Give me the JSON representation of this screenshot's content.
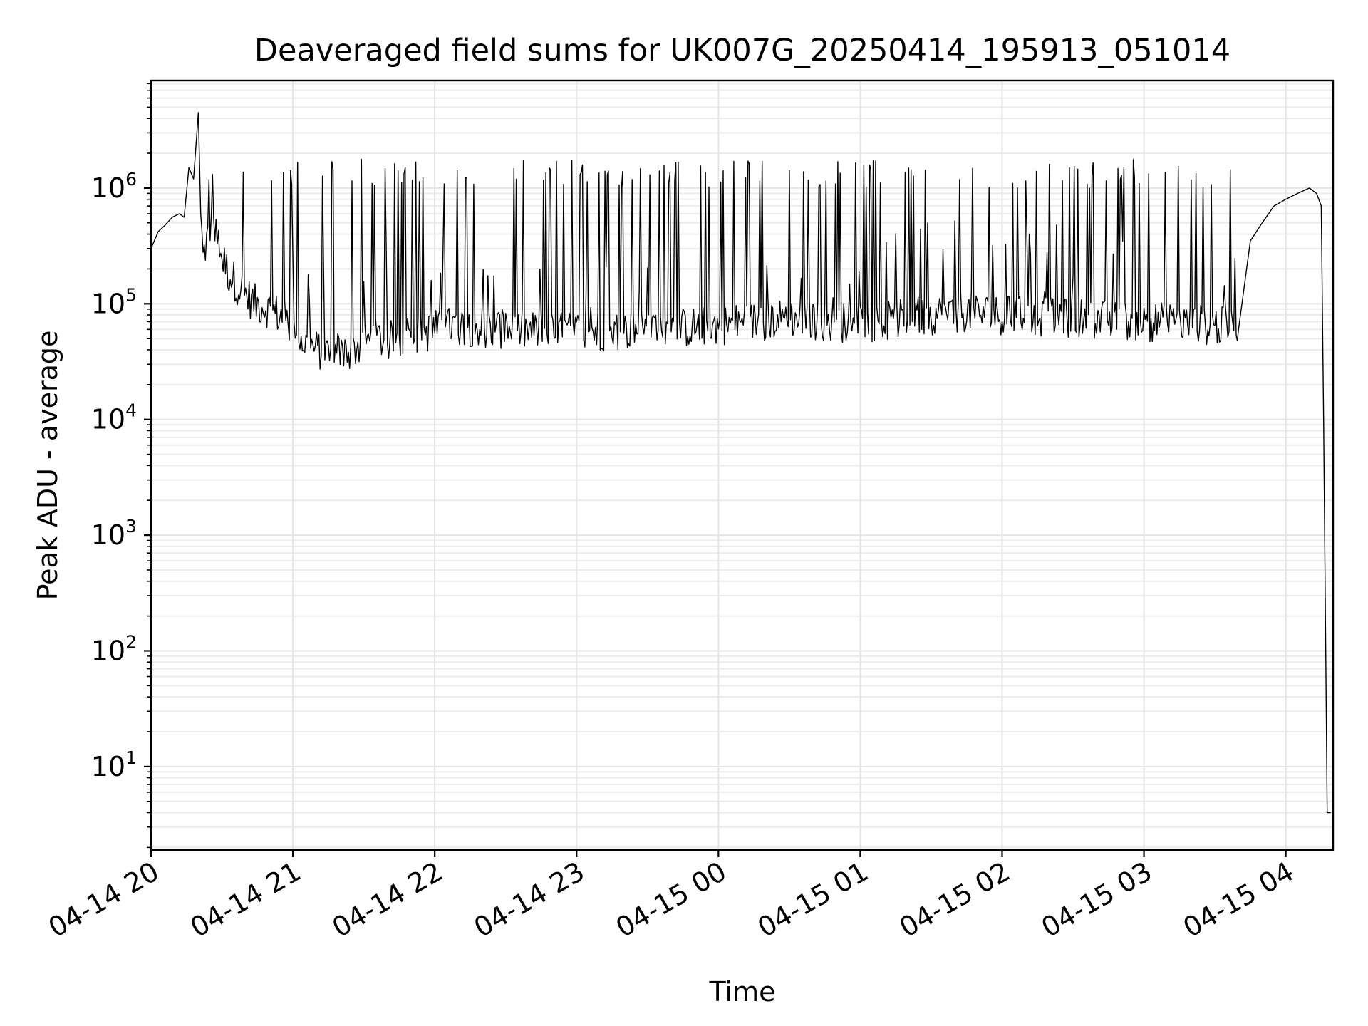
{
  "chart_data": {
    "type": "line",
    "title": "Deaveraged field sums for UK007G_20250414_195913_051014",
    "xlabel": "Time",
    "ylabel": "Peak ADU - average",
    "xlim": [
      "2025-04-14 20:00",
      "2025-04-15 04:20"
    ],
    "ylim": [
      1.9,
      8500000
    ],
    "yscale": "log",
    "grid": true,
    "legend": "none",
    "line_color": "#000000",
    "x_ticks": [
      {
        "value": "2025-04-14 20:00",
        "label": "04-14 20"
      },
      {
        "value": "2025-04-14 21:00",
        "label": "04-14 21"
      },
      {
        "value": "2025-04-14 22:00",
        "label": "04-14 22"
      },
      {
        "value": "2025-04-14 23:00",
        "label": "04-14 23"
      },
      {
        "value": "2025-04-15 00:00",
        "label": "04-15 00"
      },
      {
        "value": "2025-04-15 01:00",
        "label": "04-15 01"
      },
      {
        "value": "2025-04-15 02:00",
        "label": "04-15 02"
      },
      {
        "value": "2025-04-15 03:00",
        "label": "04-15 03"
      },
      {
        "value": "2025-04-15 04:00",
        "label": "04-15 04"
      }
    ],
    "y_ticks": [
      {
        "value": 10,
        "base": "10",
        "exp": "1"
      },
      {
        "value": 100,
        "base": "10",
        "exp": "2"
      },
      {
        "value": 1000,
        "base": "10",
        "exp": "3"
      },
      {
        "value": 10000,
        "base": "10",
        "exp": "4"
      },
      {
        "value": 100000,
        "base": "10",
        "exp": "5"
      },
      {
        "value": 1000000,
        "base": "10",
        "exp": "6"
      }
    ],
    "series": [
      {
        "x": [
          "2025-04-14 20:00",
          "2025-04-14 20:03",
          "2025-04-14 20:06",
          "2025-04-14 20:09",
          "2025-04-14 20:12",
          "2025-04-14 20:14",
          "2025-04-14 20:16",
          "2025-04-14 20:18",
          "2025-04-14 20:20",
          "2025-04-14 20:21",
          "2025-04-14 20:22",
          "2025-04-14 20:24",
          "2025-04-14 20:26",
          "2025-04-14 20:28",
          "2025-04-14 20:30",
          "2025-04-14 20:33",
          "2025-04-14 20:36",
          "2025-04-14 20:40",
          "2025-04-14 20:44",
          "2025-04-14 20:48",
          "2025-04-14 20:52",
          "2025-04-14 20:56",
          "2025-04-14 21:00",
          "2025-04-14 21:05",
          "2025-04-14 21:10",
          "2025-04-14 21:15",
          "2025-04-14 21:20",
          "2025-04-14 21:25",
          "2025-04-14 21:30",
          "2025-04-14 21:35",
          "2025-04-14 21:40",
          "2025-04-14 21:45",
          "2025-04-14 21:50",
          "2025-04-14 21:55",
          "2025-04-14 22:00",
          "2025-04-14 22:10",
          "2025-04-14 22:20",
          "2025-04-14 22:30",
          "2025-04-14 22:40",
          "2025-04-14 22:50",
          "2025-04-14 23:00",
          "2025-04-14 23:15",
          "2025-04-14 23:30",
          "2025-04-14 23:45",
          "2025-04-15 00:00",
          "2025-04-15 00:15",
          "2025-04-15 00:30",
          "2025-04-15 00:45",
          "2025-04-15 01:00",
          "2025-04-15 01:15",
          "2025-04-15 01:30",
          "2025-04-15 01:45",
          "2025-04-15 02:00",
          "2025-04-15 02:15",
          "2025-04-15 02:30",
          "2025-04-15 02:45",
          "2025-04-15 03:00",
          "2025-04-15 03:15",
          "2025-04-15 03:30",
          "2025-04-15 03:40",
          "2025-04-15 03:45",
          "2025-04-15 03:50",
          "2025-04-15 03:55",
          "2025-04-15 04:00",
          "2025-04-15 04:05",
          "2025-04-15 04:10",
          "2025-04-15 04:13",
          "2025-04-15 04:15",
          "2025-04-15 04:16",
          "2025-04-15 04:17",
          "2025-04-15 04:17.5",
          "2025-04-15 04:18",
          "2025-04-15 04:19"
        ],
        "y": [
          300000,
          420000,
          480000,
          560000,
          600000,
          560000,
          1500000,
          1200000,
          4500000,
          600000,
          250000,
          380000,
          500000,
          350000,
          250000,
          180000,
          150000,
          120000,
          100000,
          95000,
          85000,
          75000,
          60000,
          45000,
          40000,
          38000,
          36000,
          40000,
          45000,
          50000,
          48000,
          50000,
          52000,
          55000,
          60000,
          65000,
          62000,
          60000,
          58000,
          57000,
          58000,
          58000,
          60000,
          62000,
          65000,
          70000,
          75000,
          70000,
          68000,
          72000,
          80000,
          85000,
          80000,
          78000,
          75000,
          72000,
          70000,
          68000,
          65000,
          60000,
          350000,
          500000,
          700000,
          800000,
          900000,
          1000000,
          900000,
          700000,
          10000,
          60,
          4,
          4,
          4
        ]
      }
    ]
  }
}
